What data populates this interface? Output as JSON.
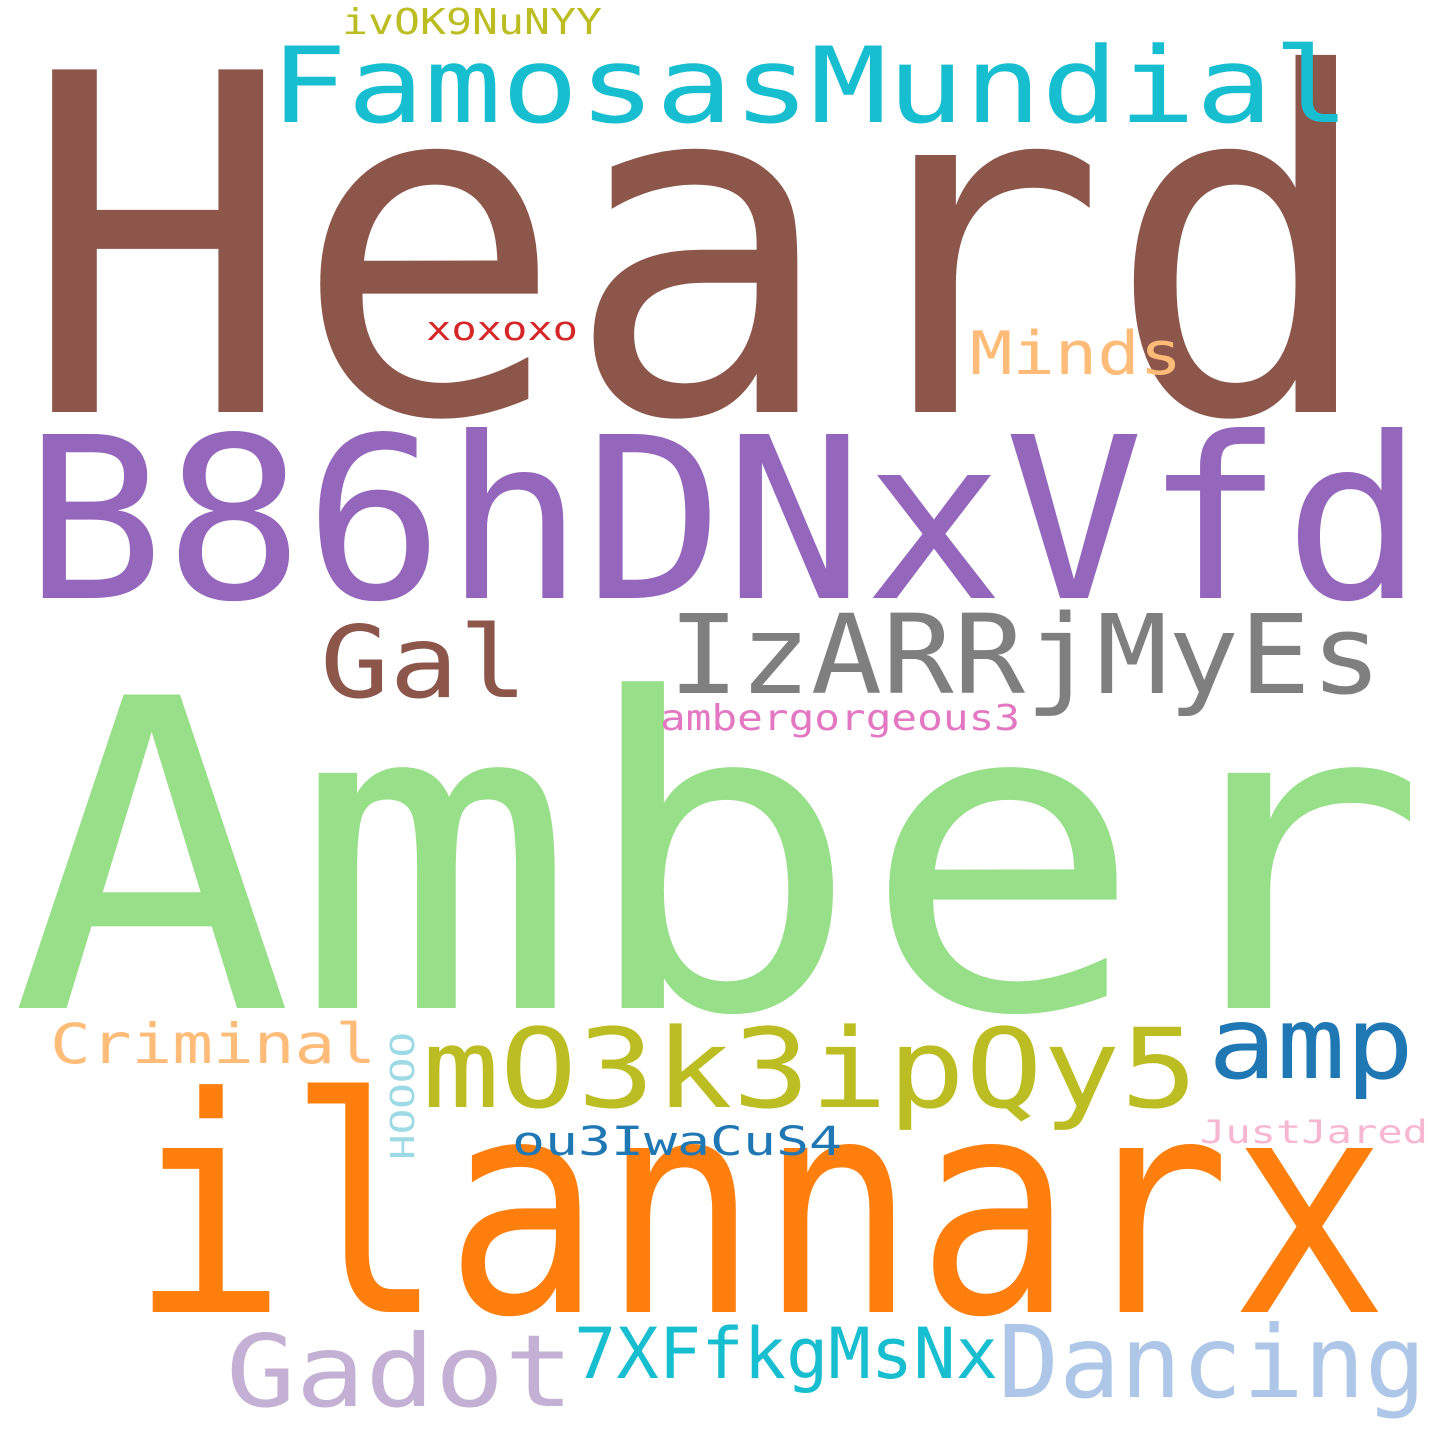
{
  "words": [
    {
      "key": "heard",
      "text": "Heard",
      "color": "#8c564b"
    },
    {
      "key": "amber",
      "text": "Amber",
      "color": "#98df8a"
    },
    {
      "key": "ilannarx",
      "text": "ilannarx",
      "color": "#ff7f0e"
    },
    {
      "key": "b86hdnxvfd",
      "text": "B86hDNxVfd",
      "color": "#9467bd"
    },
    {
      "key": "famosasmundial",
      "text": "FamosasMundial",
      "color": "#17becf"
    },
    {
      "key": "izarrjmyes",
      "text": "IzARRjMyEs",
      "color": "#7f7f7f"
    },
    {
      "key": "m03k3ipqy5",
      "text": "mO3k3ipQy5",
      "color": "#bcbd22"
    },
    {
      "key": "gal",
      "text": "Gal",
      "color": "#8c564b"
    },
    {
      "key": "gadot",
      "text": "Gadot",
      "color": "#c5b0d5"
    },
    {
      "key": "dancing",
      "text": "Dancing",
      "color": "#aec7e8"
    },
    {
      "key": "amp",
      "text": "amp",
      "color": "#1f77b4"
    },
    {
      "key": "7xffkgmsnx",
      "text": "7XFfkgMsNx",
      "color": "#17becf"
    },
    {
      "key": "minds",
      "text": "Minds",
      "color": "#ffbb78"
    },
    {
      "key": "criminal",
      "text": "Criminal",
      "color": "#ffbb78"
    },
    {
      "key": "ou3iwacus4",
      "text": "ou3IwaCuS4",
      "color": "#1f77b4"
    },
    {
      "key": "ambergorgeous3",
      "text": "ambergorgeous3",
      "color": "#e377c2"
    },
    {
      "key": "ivok9nunyy",
      "text": "ivOK9NuNYY",
      "color": "#bcbd22"
    },
    {
      "key": "xoxoxo",
      "text": "xoxoxo",
      "color": "#d62728"
    },
    {
      "key": "justjared",
      "text": "JustJared",
      "color": "#f7b6d2"
    },
    {
      "key": "ooooh",
      "text": "OOOOH",
      "color": "#9edae5"
    }
  ]
}
